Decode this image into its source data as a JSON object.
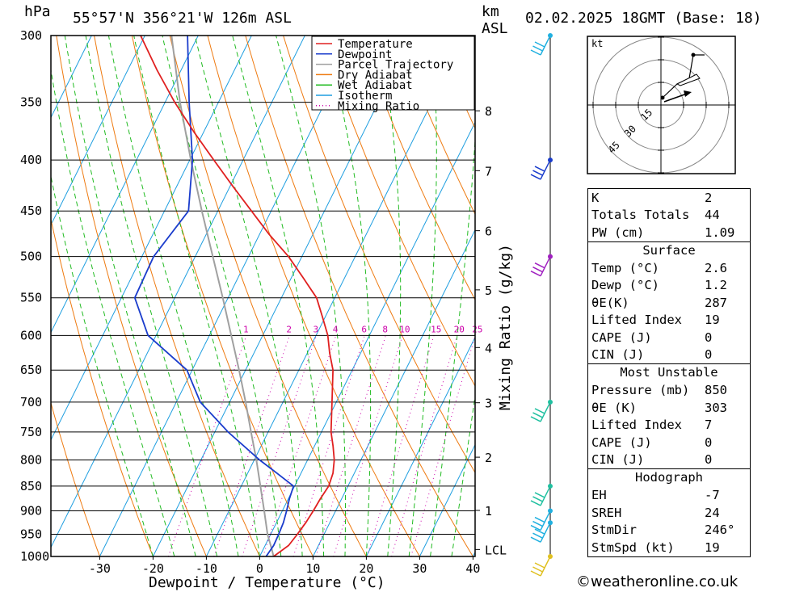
{
  "header": {
    "hpa_unit": "hPa",
    "location": "55°57'N  356°21'W  126m  ASL",
    "km_unit_line1": "km",
    "km_unit_line2": "ASL",
    "datetime": "02.02.2025  18GMT  (Base: 18)"
  },
  "chart_data": {
    "type": "line",
    "title": "55°57'N  356°21'W  126m  ASL",
    "xlabel": "Dewpoint / Temperature (°C)",
    "ylabel": "hPa",
    "y2label": "Mixing Ratio (g/kg)",
    "xlim": [
      -35,
      40
    ],
    "ylim": [
      1000,
      300
    ],
    "pressure_ticks": [
      300,
      350,
      400,
      450,
      500,
      550,
      600,
      650,
      700,
      750,
      800,
      850,
      900,
      950,
      1000
    ],
    "temp_ticks": [
      -30,
      -20,
      -10,
      0,
      10,
      20,
      30,
      40
    ],
    "height_ticks": [
      {
        "label": "8",
        "p": 357
      },
      {
        "label": "7",
        "p": 410
      },
      {
        "label": "6",
        "p": 471
      },
      {
        "label": "5",
        "p": 540
      },
      {
        "label": "4",
        "p": 617
      },
      {
        "label": "3",
        "p": 701
      },
      {
        "label": "2",
        "p": 795
      },
      {
        "label": "1",
        "p": 899
      },
      {
        "label": "LCL",
        "p": 984
      }
    ],
    "mixing_ratio_labels": [
      "1",
      "2",
      "3",
      "4",
      "6",
      "8",
      "10",
      "15",
      "20",
      "25"
    ],
    "legend": [
      "Temperature",
      "Dewpoint",
      "Parcel Trajectory",
      "Dry Adiabat",
      "Wet Adiabat",
      "Isotherm",
      "Mixing Ratio"
    ],
    "legend_position": "top-right",
    "series": [
      {
        "name": "Temperature",
        "color": "#e02020",
        "points": [
          [
            2.6,
            1000
          ],
          [
            4.4,
            975
          ],
          [
            5.0,
            950
          ],
          [
            5.5,
            925
          ],
          [
            5.8,
            900
          ],
          [
            6.0,
            875
          ],
          [
            6.4,
            850
          ],
          [
            6.0,
            825
          ],
          [
            5.0,
            800
          ],
          [
            3.5,
            775
          ],
          [
            1.8,
            750
          ],
          [
            -0.8,
            700
          ],
          [
            -3.6,
            650
          ],
          [
            -5.8,
            625
          ],
          [
            -7.8,
            600
          ],
          [
            -10.5,
            575
          ],
          [
            -13.4,
            550
          ],
          [
            -17.8,
            525
          ],
          [
            -22.5,
            500
          ],
          [
            -28.2,
            475
          ],
          [
            -33.7,
            450
          ],
          [
            -39.5,
            425
          ],
          [
            -45.5,
            400
          ],
          [
            -51.8,
            375
          ],
          [
            -58.2,
            350
          ],
          [
            -64.5,
            325
          ],
          [
            -70.8,
            300
          ]
        ]
      },
      {
        "name": "Dewpoint",
        "color": "#1a3ccc",
        "points": [
          [
            1.2,
            1000
          ],
          [
            1.6,
            975
          ],
          [
            1.5,
            950
          ],
          [
            1.3,
            925
          ],
          [
            0.8,
            900
          ],
          [
            0.2,
            875
          ],
          [
            -0.2,
            850
          ],
          [
            -4.5,
            825
          ],
          [
            -9.0,
            800
          ],
          [
            -17.5,
            750
          ],
          [
            -25.5,
            700
          ],
          [
            -31.0,
            650
          ],
          [
            -41.5,
            600
          ],
          [
            -47.5,
            550
          ],
          [
            -47.8,
            500
          ],
          [
            -45.5,
            450
          ],
          [
            -49.5,
            400
          ],
          [
            -55.5,
            350
          ],
          [
            -62.0,
            300
          ]
        ]
      },
      {
        "name": "Parcel Trajectory",
        "color": "#a0a0a0",
        "points": [
          [
            2.6,
            1000
          ],
          [
            1.7,
            985
          ],
          [
            -0.6,
            950
          ],
          [
            -3.4,
            900
          ],
          [
            -6.4,
            850
          ],
          [
            -9.6,
            800
          ],
          [
            -13.2,
            750
          ],
          [
            -17.0,
            700
          ],
          [
            -21.2,
            650
          ],
          [
            -25.9,
            600
          ],
          [
            -31.0,
            550
          ],
          [
            -36.7,
            500
          ],
          [
            -43.0,
            450
          ],
          [
            -49.8,
            400
          ],
          [
            -57.2,
            350
          ],
          [
            -65.0,
            300
          ]
        ]
      }
    ]
  },
  "hodograph": {
    "unit": "kt",
    "ring_labels": [
      "15",
      "30",
      "45"
    ]
  },
  "indices": {
    "rows": [
      {
        "k": "K",
        "v": "2"
      },
      {
        "k": "Totals Totals",
        "v": "44"
      },
      {
        "k": "PW (cm)",
        "v": "1.09"
      }
    ],
    "surface": {
      "title": "Surface",
      "rows": [
        {
          "k": "Temp (°C)",
          "v": "2.6"
        },
        {
          "k": "Dewp (°C)",
          "v": "1.2"
        },
        {
          "k": "θE(K)",
          "v": "287"
        },
        {
          "k": "Lifted Index",
          "v": "19"
        },
        {
          "k": "CAPE (J)",
          "v": "0"
        },
        {
          "k": "CIN (J)",
          "v": "0"
        }
      ]
    },
    "most_unstable": {
      "title": "Most Unstable",
      "rows": [
        {
          "k": "Pressure (mb)",
          "v": "850"
        },
        {
          "k": "θE (K)",
          "v": "303"
        },
        {
          "k": "Lifted Index",
          "v": "7"
        },
        {
          "k": "CAPE (J)",
          "v": "0"
        },
        {
          "k": "CIN (J)",
          "v": "0"
        }
      ]
    },
    "hodograph": {
      "title": "Hodograph",
      "rows": [
        {
          "k": "EH",
          "v": "-7"
        },
        {
          "k": "SREH",
          "v": "24"
        },
        {
          "k": "StmDir",
          "v": "246°"
        },
        {
          "k": "StmSpd (kt)",
          "v": "19"
        }
      ]
    }
  },
  "wind_profile": {
    "levels": [
      {
        "p": 300,
        "color": "#20b0e0"
      },
      {
        "p": 400,
        "color": "#1a3ccc"
      },
      {
        "p": 500,
        "color": "#a020c0"
      },
      {
        "p": 700,
        "color": "#20c0a0"
      },
      {
        "p": 850,
        "color": "#20c0a0"
      },
      {
        "p": 900,
        "color": "#20b0e0"
      },
      {
        "p": 925,
        "color": "#20b0e0"
      },
      {
        "p": 1000,
        "color": "#e0c020"
      }
    ]
  },
  "footer": {
    "text": "©weatheronline.co.uk"
  }
}
